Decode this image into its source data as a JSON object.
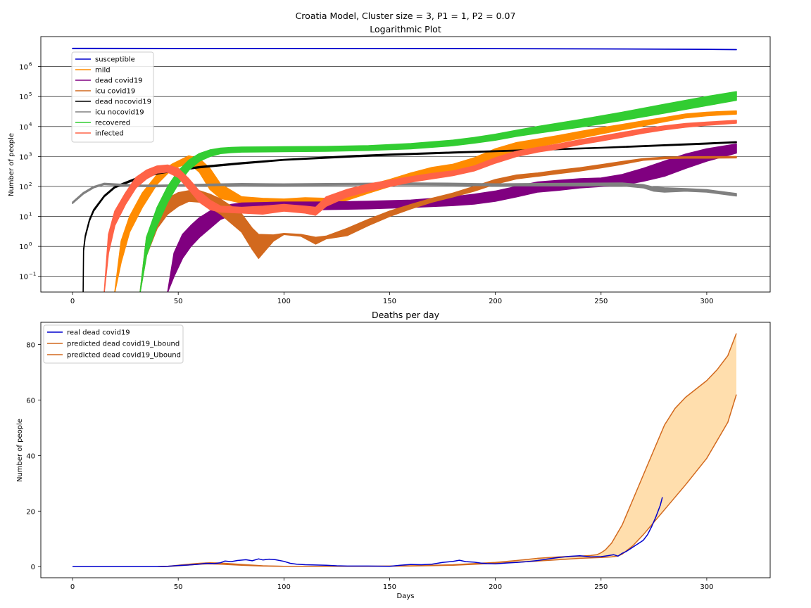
{
  "figure": {
    "suptitle": "Croatia Model, Cluster size = 3, P1 = 1, P2 = 0.07"
  },
  "chart_data": [
    {
      "type": "area",
      "title": "Logarithmic Plot",
      "xlabel": "",
      "ylabel": "Number of people",
      "xlim": [
        -15,
        330
      ],
      "ylim": [
        0.03,
        10000000
      ],
      "yscale": "log",
      "xticks": [
        0,
        50,
        100,
        150,
        200,
        250,
        300
      ],
      "yticks": [
        {
          "value": 0.1,
          "label": "10",
          "exp": "−1"
        },
        {
          "value": 1,
          "label": "10",
          "exp": "0"
        },
        {
          "value": 10,
          "label": "10",
          "exp": "1"
        },
        {
          "value": 100,
          "label": "10",
          "exp": "2"
        },
        {
          "value": 1000,
          "label": "10",
          "exp": "3"
        },
        {
          "value": 10000,
          "label": "10",
          "exp": "4"
        },
        {
          "value": 100000,
          "label": "10",
          "exp": "5"
        },
        {
          "value": 1000000,
          "label": "10",
          "exp": "6"
        }
      ],
      "grid": "y-major",
      "legend": "top-left",
      "series": [
        {
          "name": "susceptible",
          "color": "#0000cd",
          "x": [
            0,
            50,
            100,
            150,
            200,
            250,
            300,
            314
          ],
          "lower": [
            4000000,
            4000000,
            3990000,
            3970000,
            3940000,
            3870000,
            3730000,
            3650000
          ],
          "upper": [
            4050000,
            4040000,
            4030000,
            4010000,
            3980000,
            3910000,
            3780000,
            3700000
          ]
        },
        {
          "name": "mild",
          "color": "#ff8c00",
          "x": [
            20,
            23,
            27,
            33,
            40,
            47,
            55,
            60,
            65,
            70,
            80,
            90,
            100,
            110,
            120,
            130,
            140,
            150,
            160,
            170,
            180,
            190,
            200,
            210,
            220,
            230,
            240,
            250,
            260,
            270,
            280,
            290,
            300,
            314
          ],
          "lower": [
            0.03,
            0.3,
            3,
            20,
            120,
            380,
            600,
            300,
            80,
            40,
            28,
            25,
            22,
            20,
            22,
            35,
            60,
            100,
            180,
            270,
            330,
            450,
            900,
            1500,
            2100,
            2900,
            4100,
            5700,
            7800,
            10500,
            14500,
            19500,
            23000,
            26000
          ],
          "upper": [
            0.03,
            1.5,
            10,
            60,
            250,
            550,
            1050,
            850,
            400,
            120,
            45,
            40,
            38,
            42,
            40,
            60,
            110,
            170,
            280,
            430,
            550,
            900,
            1800,
            2900,
            3800,
            5000,
            6800,
            9000,
            11700,
            15400,
            20000,
            26000,
            30000,
            33000
          ]
        },
        {
          "name": "dead covid19",
          "color": "#800080",
          "x": [
            45,
            48,
            52,
            56,
            60,
            65,
            70,
            75,
            80,
            90,
            100,
            120,
            140,
            160,
            180,
            190,
            200,
            210,
            220,
            230,
            240,
            250,
            260,
            270,
            280,
            290,
            300,
            314
          ],
          "lower": [
            0.03,
            0.1,
            0.4,
            1,
            2,
            4,
            8,
            11,
            13,
            15,
            16,
            17,
            18,
            20,
            23,
            26,
            32,
            45,
            65,
            75,
            90,
            100,
            110,
            150,
            220,
            400,
            700,
            1300
          ],
          "upper": [
            0.03,
            0.6,
            2.5,
            5,
            9,
            15,
            21,
            25,
            28,
            29,
            30,
            30,
            32,
            35,
            45,
            55,
            70,
            100,
            140,
            160,
            180,
            190,
            250,
            400,
            700,
            1200,
            1800,
            2600
          ]
        },
        {
          "name": "icu covid19",
          "color": "#d2691e",
          "x": [
            32,
            35,
            40,
            45,
            50,
            55,
            60,
            65,
            70,
            75,
            80,
            85,
            88,
            95,
            100,
            108,
            115,
            120,
            130,
            140,
            150,
            160,
            170,
            180,
            190,
            200,
            210,
            220,
            230,
            240,
            250,
            260,
            270,
            280,
            290,
            300,
            314
          ],
          "lower": [
            0.03,
            0.5,
            4,
            12,
            22,
            32,
            30,
            20,
            12,
            6,
            3,
            0.8,
            0.4,
            1.5,
            2.5,
            2.2,
            1.2,
            1.8,
            2.3,
            5,
            10,
            18,
            30,
            45,
            70,
            120,
            180,
            220,
            270,
            330,
            420,
            550,
            750,
            850,
            880,
            880,
            900
          ],
          "upper": [
            0.03,
            2,
            15,
            40,
            62,
            72,
            72,
            55,
            38,
            22,
            12,
            4,
            2.5,
            2.4,
            2.7,
            2.5,
            2,
            2.2,
            4,
            8,
            15,
            25,
            40,
            60,
            100,
            170,
            240,
            280,
            350,
            420,
            530,
            680,
            850,
            950,
            970,
            980,
            1000
          ]
        },
        {
          "name": "dead nocovid19",
          "color": "#000000",
          "x": [
            5,
            5.2,
            6,
            8,
            10,
            15,
            20,
            30,
            40,
            50,
            60,
            80,
            100,
            130,
            150,
            180,
            200,
            250,
            300,
            314
          ],
          "lower": [
            0.03,
            0.7,
            2,
            7,
            15,
            45,
            90,
            170,
            260,
            340,
            420,
            570,
            750,
            950,
            1100,
            1300,
            1450,
            1900,
            2600,
            2900
          ],
          "upper": [
            0.03,
            0.8,
            2.3,
            8,
            17,
            50,
            100,
            190,
            290,
            370,
            460,
            620,
            800,
            1050,
            1200,
            1400,
            1550,
            2000,
            2800,
            3100
          ]
        },
        {
          "name": "icu nocovid19",
          "color": "#808080",
          "x": [
            0,
            5,
            10,
            15,
            20,
            30,
            40,
            60,
            80,
            100,
            120,
            140,
            160,
            180,
            200,
            220,
            240,
            260,
            270,
            275,
            280,
            290,
            300,
            314
          ],
          "lower": [
            27,
            55,
            90,
            115,
            110,
            100,
            98,
            105,
            110,
            108,
            110,
            112,
            112,
            110,
            105,
            105,
            105,
            105,
            90,
            70,
            65,
            70,
            65,
            48
          ],
          "upper": [
            30,
            62,
            100,
            128,
            122,
            112,
            110,
            118,
            125,
            122,
            125,
            128,
            130,
            128,
            122,
            125,
            128,
            130,
            115,
            95,
            90,
            85,
            78,
            58
          ]
        },
        {
          "name": "recovered",
          "color": "#32cd32",
          "x": [
            32,
            35,
            40,
            45,
            50,
            55,
            60,
            65,
            70,
            75,
            80,
            100,
            120,
            140,
            160,
            180,
            190,
            200,
            210,
            220,
            240,
            260,
            280,
            300,
            314
          ],
          "lower": [
            0.03,
            0.5,
            5,
            30,
            120,
            350,
            700,
            1000,
            1250,
            1350,
            1400,
            1450,
            1500,
            1600,
            1800,
            2300,
            2800,
            3500,
            4700,
            6000,
            9500,
            16000,
            28000,
            50000,
            75000
          ],
          "upper": [
            0.03,
            2,
            20,
            100,
            330,
            750,
            1250,
            1650,
            1900,
            2000,
            2050,
            2100,
            2150,
            2300,
            2700,
            3500,
            4300,
            5500,
            7500,
            10000,
            17000,
            30000,
            55000,
            100000,
            145000
          ]
        },
        {
          "name": "infected",
          "color": "#ff6347",
          "x": [
            15,
            17,
            20,
            25,
            30,
            35,
            40,
            45,
            50,
            55,
            60,
            65,
            70,
            80,
            90,
            100,
            110,
            115,
            120,
            130,
            140,
            150,
            160,
            170,
            180,
            190,
            200,
            210,
            220,
            230,
            240,
            250,
            260,
            270,
            280,
            290,
            300,
            314
          ],
          "lower": [
            0.03,
            0.6,
            5,
            25,
            90,
            180,
            280,
            300,
            200,
            80,
            30,
            17,
            14,
            13,
            12,
            15,
            13,
            11,
            22,
            45,
            70,
            100,
            140,
            180,
            230,
            330,
            600,
            1000,
            1400,
            1800,
            2500,
            3300,
            4400,
            6000,
            7800,
            9500,
            11000,
            13000
          ],
          "upper": [
            0.03,
            2.5,
            15,
            60,
            200,
            350,
            480,
            520,
            400,
            180,
            70,
            35,
            22,
            20,
            22,
            25,
            22,
            20,
            45,
            80,
            120,
            160,
            210,
            270,
            330,
            480,
            900,
            1500,
            2000,
            2600,
            3600,
            4700,
            6300,
            8400,
            10500,
            12500,
            14000,
            16000
          ]
        }
      ]
    },
    {
      "type": "line",
      "title": "Deaths per day",
      "xlabel": "Days",
      "ylabel": "Number of people",
      "xlim": [
        -15,
        330
      ],
      "ylim": [
        -4,
        88
      ],
      "xticks": [
        0,
        50,
        100,
        150,
        200,
        250,
        300
      ],
      "yticks": [
        0,
        20,
        40,
        60,
        80
      ],
      "legend": "top-left",
      "band_fill": "#ffdead",
      "series": [
        {
          "name": "real dead covid19",
          "color": "#0000cd",
          "x": [
            0,
            40,
            45,
            50,
            55,
            60,
            63,
            67,
            70,
            72,
            75,
            78,
            82,
            85,
            88,
            90,
            93,
            96,
            100,
            103,
            106,
            110,
            115,
            120,
            125,
            130,
            140,
            150,
            155,
            160,
            165,
            170,
            175,
            180,
            183,
            186,
            190,
            193,
            196,
            200,
            205,
            210,
            215,
            220,
            225,
            230,
            235,
            240,
            245,
            250,
            253,
            256,
            258,
            260,
            262,
            264,
            266,
            268,
            270,
            272,
            274,
            276,
            278,
            279
          ],
          "y": [
            0,
            0,
            0.1,
            0.4,
            0.6,
            0.9,
            1.2,
            1.1,
            1.4,
            2.0,
            1.8,
            2.2,
            2.5,
            2.1,
            2.8,
            2.4,
            2.7,
            2.5,
            1.9,
            1.2,
            0.9,
            0.7,
            0.6,
            0.5,
            0.3,
            0.2,
            0.2,
            0.1,
            0.5,
            0.8,
            0.7,
            0.9,
            1.5,
            1.9,
            2.3,
            1.8,
            1.6,
            1.3,
            1.1,
            1.0,
            1.3,
            1.5,
            1.8,
            2.2,
            2.8,
            3.3,
            3.7,
            3.9,
            3.5,
            3.6,
            3.9,
            4.3,
            3.8,
            4.8,
            5.5,
            6.5,
            7.5,
            8.5,
            9.5,
            11.5,
            14.5,
            18,
            22,
            25
          ]
        },
        {
          "name": "predicted dead covid19_Lbound",
          "color": "#d2691e",
          "x": [
            0,
            40,
            45,
            50,
            55,
            60,
            65,
            70,
            80,
            90,
            100,
            120,
            140,
            160,
            180,
            200,
            210,
            220,
            230,
            240,
            250,
            255,
            258,
            260,
            265,
            270,
            275,
            280,
            290,
            300,
            310,
            314
          ],
          "y": [
            0,
            0,
            0.05,
            0.3,
            0.6,
            0.9,
            1.0,
            0.9,
            0.5,
            0.2,
            0.1,
            0.1,
            0.1,
            0.2,
            0.5,
            1.2,
            1.6,
            2.0,
            2.5,
            3.0,
            3.3,
            3.5,
            3.8,
            4.5,
            7.5,
            11.5,
            16,
            20.5,
            29.5,
            39,
            52,
            62
          ]
        },
        {
          "name": "predicted dead covid19_Ubound",
          "color": "#d2691e",
          "x": [
            0,
            40,
            45,
            50,
            55,
            60,
            65,
            70,
            80,
            90,
            100,
            120,
            140,
            160,
            180,
            200,
            210,
            220,
            230,
            240,
            245,
            248,
            250,
            252,
            255,
            260,
            265,
            270,
            275,
            280,
            285,
            290,
            300,
            305,
            310,
            314
          ],
          "y": [
            0,
            0,
            0.1,
            0.5,
            0.9,
            1.2,
            1.4,
            1.3,
            0.8,
            0.3,
            0.1,
            0.1,
            0.1,
            0.3,
            0.7,
            1.5,
            2.2,
            3.0,
            3.5,
            3.8,
            4.0,
            4.3,
            5.0,
            6.0,
            8.5,
            15,
            24,
            33,
            42,
            51,
            57,
            61,
            67,
            71,
            76,
            84
          ]
        }
      ]
    }
  ]
}
